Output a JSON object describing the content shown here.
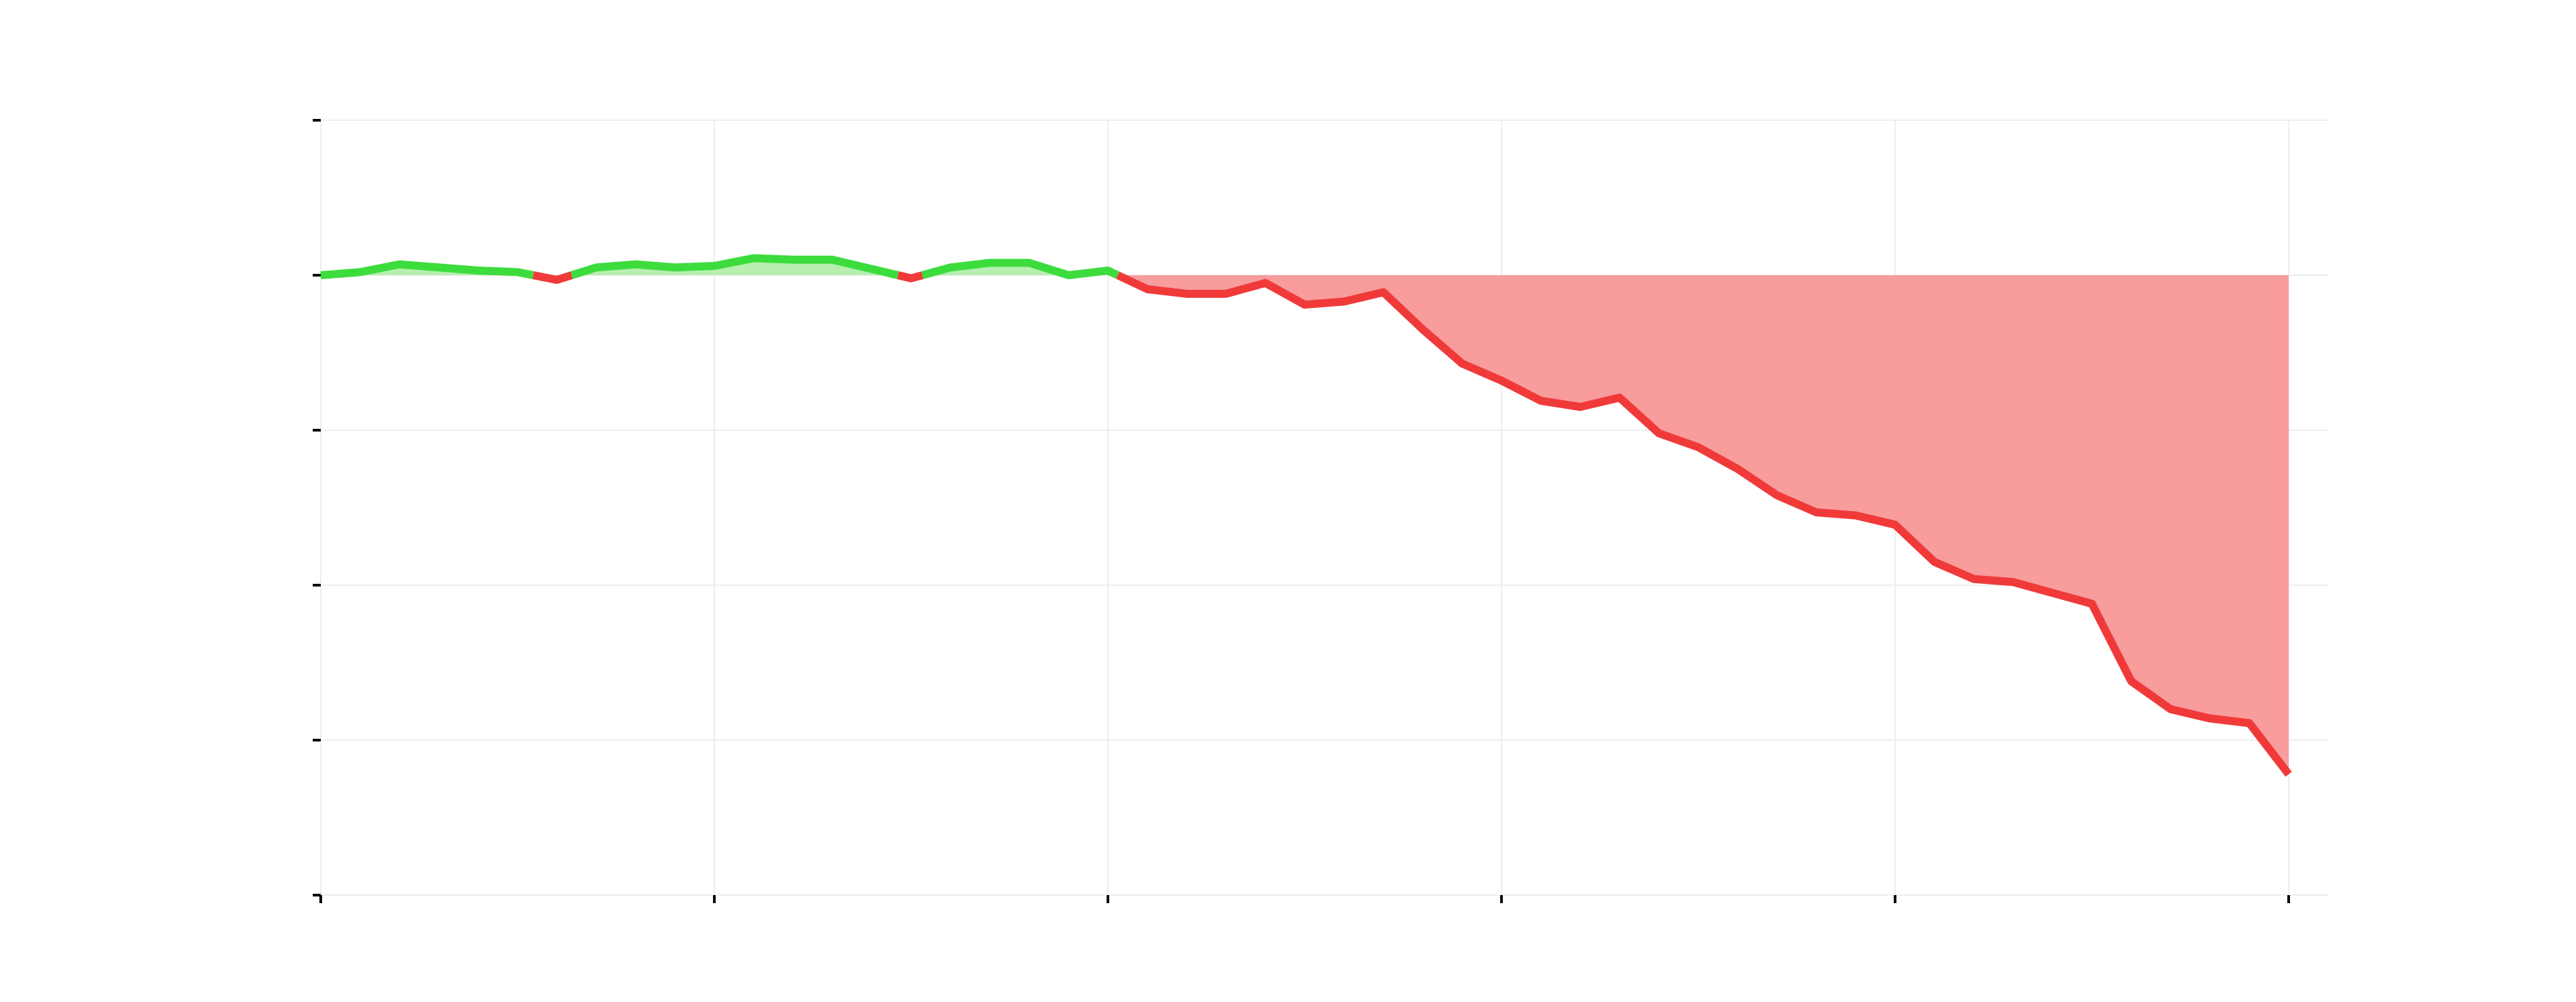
{
  "colors": {
    "positive_line": "#3ddc3d",
    "negative_line": "#f03a3a",
    "positive_fill": "#b6efb0",
    "negative_fill": "#f89c9c",
    "grid": "#eeeeee",
    "tick": "#000000"
  },
  "chart_data": {
    "type": "area",
    "title": "",
    "xlabel": "",
    "ylabel": "",
    "baseline": 0,
    "xlim": [
      0,
      50
    ],
    "ylim": [
      -4,
      1
    ],
    "x_ticks": [
      0,
      10,
      20,
      30,
      40,
      50
    ],
    "y_ticks": [
      -4,
      -3,
      -2,
      -1,
      0,
      1
    ],
    "x_tick_labels": [],
    "y_tick_labels": [],
    "grid": true,
    "legend": "none",
    "x": [
      0,
      1,
      2,
      3,
      4,
      5,
      6,
      7,
      8,
      9,
      10,
      11,
      12,
      13,
      14,
      15,
      16,
      17,
      18,
      19,
      20,
      21,
      22,
      23,
      24,
      25,
      26,
      27,
      28,
      29,
      30,
      31,
      32,
      33,
      34,
      35,
      36,
      37,
      38,
      39,
      40,
      41,
      42,
      43,
      44,
      45,
      46,
      47,
      48,
      49,
      50
    ],
    "values": [
      0.0,
      0.02,
      0.07,
      0.05,
      0.03,
      0.02,
      -0.03,
      0.05,
      0.07,
      0.05,
      0.06,
      0.11,
      0.1,
      0.1,
      0.04,
      -0.02,
      0.05,
      0.08,
      0.08,
      0.0,
      0.03,
      -0.09,
      -0.12,
      -0.12,
      -0.05,
      -0.19,
      -0.17,
      -0.11,
      -0.35,
      -0.57,
      -0.68,
      -0.81,
      -0.85,
      -0.79,
      -1.02,
      -1.11,
      -1.25,
      -1.42,
      -1.53,
      -1.55,
      -1.61,
      -1.85,
      -1.96,
      -1.98,
      -2.05,
      -2.12,
      -2.62,
      -2.8,
      -2.86,
      -2.89,
      -3.22
    ]
  }
}
